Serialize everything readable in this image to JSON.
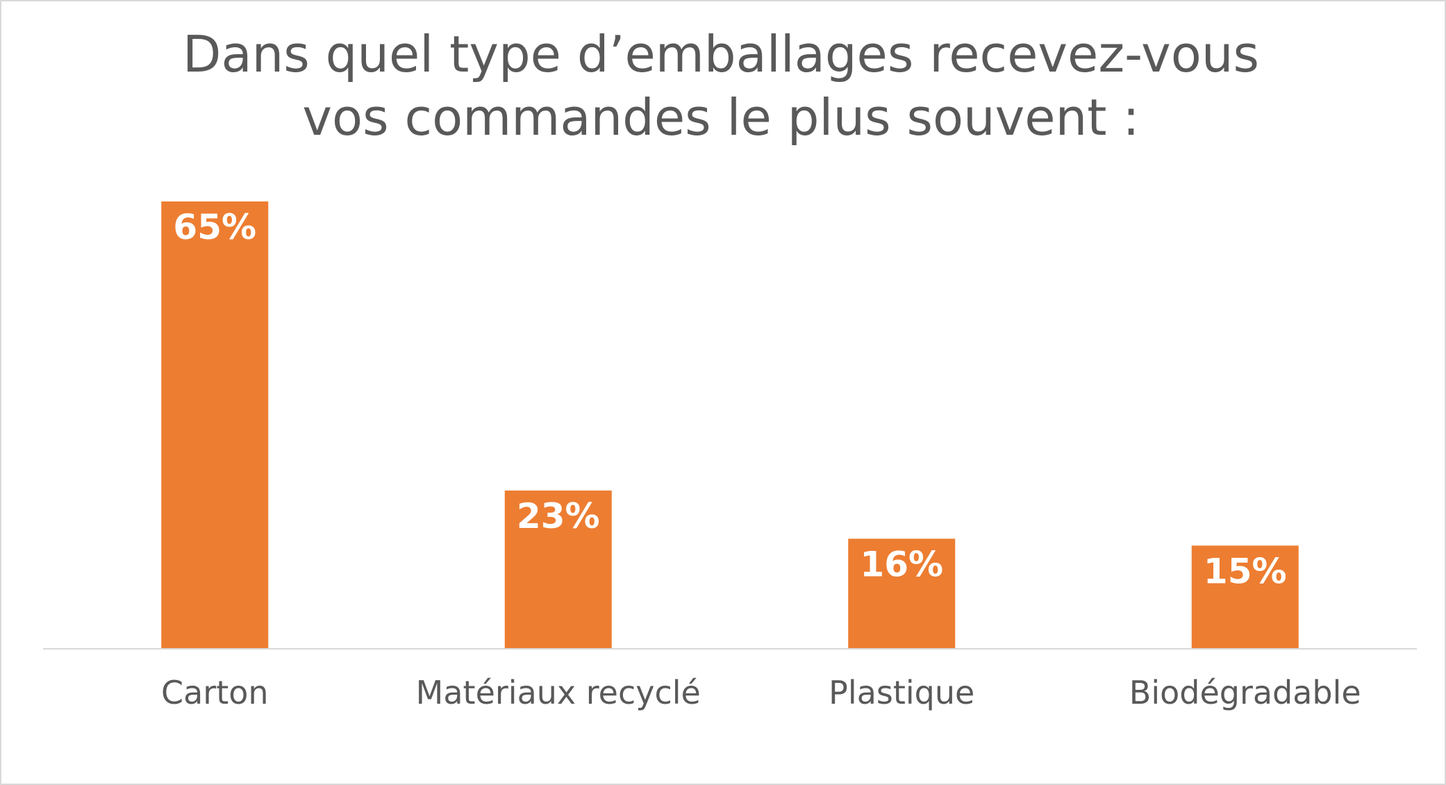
{
  "chart_data": {
    "type": "bar",
    "title_lines": [
      "Dans quel type d’emballages recevez-vous",
      "vos commandes le plus souvent :"
    ],
    "categories": [
      "Carton",
      "Matériaux recyclé",
      "Plastique",
      "Biodégradable"
    ],
    "values": [
      65,
      23,
      16,
      15
    ],
    "data_labels": [
      "65%",
      "23%",
      "16%",
      "15%"
    ],
    "value_unit": "%",
    "ylim": [
      0,
      65
    ],
    "grid": false,
    "legend": "none",
    "xlabel": "",
    "ylabel": ""
  },
  "colors": {
    "bar": "#ED7D31",
    "axis_line": "#d9d9d9",
    "text": "#595959",
    "data_label": "#ffffff"
  }
}
